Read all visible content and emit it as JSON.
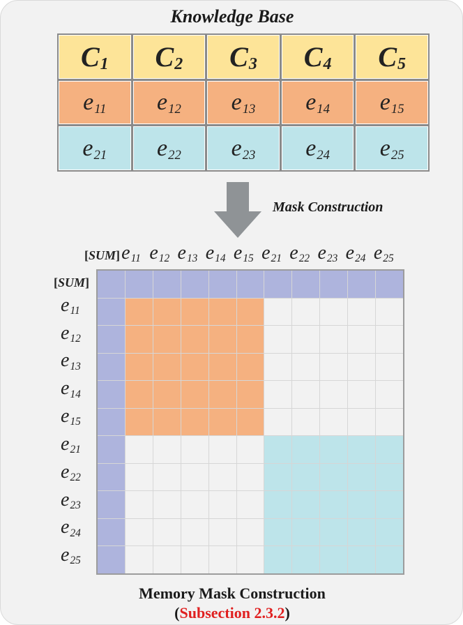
{
  "knowledge_base": {
    "title": "Knowledge Base",
    "rows": [
      {
        "kind": "c",
        "cells": [
          {
            "base": "C",
            "sub": "1"
          },
          {
            "base": "C",
            "sub": "2"
          },
          {
            "base": "C",
            "sub": "3"
          },
          {
            "base": "C",
            "sub": "4"
          },
          {
            "base": "C",
            "sub": "5"
          }
        ]
      },
      {
        "kind": "e1",
        "cells": [
          {
            "base": "e",
            "sub": "11"
          },
          {
            "base": "e",
            "sub": "12"
          },
          {
            "base": "e",
            "sub": "13"
          },
          {
            "base": "e",
            "sub": "14"
          },
          {
            "base": "e",
            "sub": "15"
          }
        ]
      },
      {
        "kind": "e2",
        "cells": [
          {
            "base": "e",
            "sub": "21"
          },
          {
            "base": "e",
            "sub": "22"
          },
          {
            "base": "e",
            "sub": "23"
          },
          {
            "base": "e",
            "sub": "24"
          },
          {
            "base": "e",
            "sub": "25"
          }
        ]
      }
    ]
  },
  "arrow_label": "Mask Construction",
  "mask": {
    "sum_label_open": "[",
    "sum_label_text": "SUM",
    "sum_label_close": "]",
    "tokens": [
      {
        "base": "e",
        "sub": "11",
        "group": 1
      },
      {
        "base": "e",
        "sub": "12",
        "group": 1
      },
      {
        "base": "e",
        "sub": "13",
        "group": 1
      },
      {
        "base": "e",
        "sub": "14",
        "group": 1
      },
      {
        "base": "e",
        "sub": "15",
        "group": 1
      },
      {
        "base": "e",
        "sub": "21",
        "group": 2
      },
      {
        "base": "e",
        "sub": "22",
        "group": 2
      },
      {
        "base": "e",
        "sub": "23",
        "group": 2
      },
      {
        "base": "e",
        "sub": "24",
        "group": 2
      },
      {
        "base": "e",
        "sub": "25",
        "group": 2
      }
    ]
  },
  "colors": {
    "c_row": "#fde498",
    "group1": "#f5b180",
    "group2": "#bde4ea",
    "sum": "#aeb4dd",
    "masked": "#f2f2f2"
  },
  "caption": {
    "title": "Memory Mask Construction",
    "ref_open": "(",
    "ref_text": "Subsection 2.3.2",
    "ref_close": ")"
  }
}
